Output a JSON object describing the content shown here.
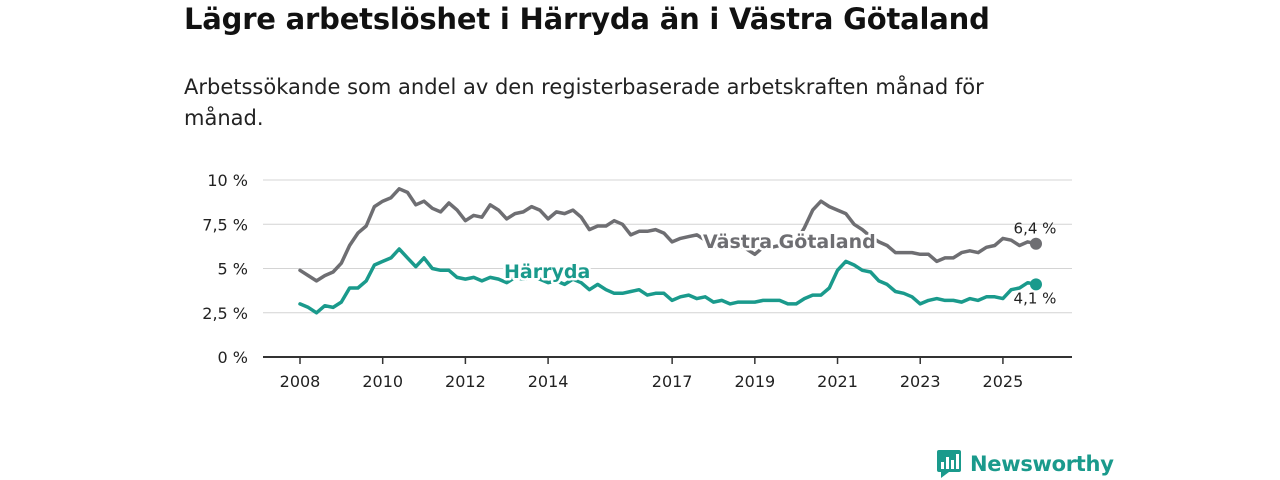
{
  "title": "Lägre arbetslöshet i Härryda än i Västra Götaland",
  "subtitle": "Arbetssökande som andel av den registerbaserade arbetskraften månad för månad.",
  "brand": {
    "name": "Newsworthy",
    "icon": "newsworthy-logo-icon",
    "color": "#1a9a8c"
  },
  "chart_data": {
    "type": "line",
    "title": "Lägre arbetslöshet i Härryda än i Västra Götaland",
    "xlabel": "",
    "ylabel": "",
    "xlim": [
      2008,
      2025.8
    ],
    "ylim": [
      0,
      10
    ],
    "grid": true,
    "x_ticks": [
      2008,
      2010,
      2012,
      2014,
      2017,
      2019,
      2021,
      2023,
      2025
    ],
    "x_tick_labels": [
      "2008",
      "2010",
      "2012",
      "2014",
      "2017",
      "2019",
      "2021",
      "2023",
      "2025"
    ],
    "y_ticks": [
      0,
      2.5,
      5,
      7.5,
      10
    ],
    "y_tick_labels": [
      "0 %",
      "2,5 %",
      "5 %",
      "7,5 %",
      "10 %"
    ],
    "series": [
      {
        "name": "Västra Götaland",
        "color": "#6e6e72",
        "end_label": "6,4 %",
        "points": [
          [
            2008.0,
            4.9
          ],
          [
            2008.2,
            4.6
          ],
          [
            2008.4,
            4.3
          ],
          [
            2008.6,
            4.6
          ],
          [
            2008.8,
            4.8
          ],
          [
            2009.0,
            5.3
          ],
          [
            2009.2,
            6.3
          ],
          [
            2009.4,
            7.0
          ],
          [
            2009.6,
            7.4
          ],
          [
            2009.8,
            8.5
          ],
          [
            2010.0,
            8.8
          ],
          [
            2010.2,
            9.0
          ],
          [
            2010.4,
            9.5
          ],
          [
            2010.6,
            9.3
          ],
          [
            2010.8,
            8.6
          ],
          [
            2011.0,
            8.8
          ],
          [
            2011.2,
            8.4
          ],
          [
            2011.4,
            8.2
          ],
          [
            2011.6,
            8.7
          ],
          [
            2011.8,
            8.3
          ],
          [
            2012.0,
            7.7
          ],
          [
            2012.2,
            8.0
          ],
          [
            2012.4,
            7.9
          ],
          [
            2012.6,
            8.6
          ],
          [
            2012.8,
            8.3
          ],
          [
            2013.0,
            7.8
          ],
          [
            2013.2,
            8.1
          ],
          [
            2013.4,
            8.2
          ],
          [
            2013.6,
            8.5
          ],
          [
            2013.8,
            8.3
          ],
          [
            2014.0,
            7.8
          ],
          [
            2014.2,
            8.2
          ],
          [
            2014.4,
            8.1
          ],
          [
            2014.6,
            8.3
          ],
          [
            2014.8,
            7.9
          ],
          [
            2015.0,
            7.2
          ],
          [
            2015.2,
            7.4
          ],
          [
            2015.4,
            7.4
          ],
          [
            2015.6,
            7.7
          ],
          [
            2015.8,
            7.5
          ],
          [
            2016.0,
            6.9
          ],
          [
            2016.2,
            7.1
          ],
          [
            2016.4,
            7.1
          ],
          [
            2016.6,
            7.2
          ],
          [
            2016.8,
            7.0
          ],
          [
            2017.0,
            6.5
          ],
          [
            2017.2,
            6.7
          ],
          [
            2017.4,
            6.8
          ],
          [
            2017.6,
            6.9
          ],
          [
            2017.8,
            6.6
          ],
          [
            2018.0,
            6.2
          ],
          [
            2018.2,
            6.5
          ],
          [
            2018.4,
            6.4
          ],
          [
            2018.6,
            6.3
          ],
          [
            2018.8,
            6.1
          ],
          [
            2019.0,
            5.8
          ],
          [
            2019.2,
            6.2
          ],
          [
            2019.4,
            6.2
          ],
          [
            2019.6,
            6.3
          ],
          [
            2019.8,
            6.5
          ],
          [
            2020.0,
            6.5
          ],
          [
            2020.2,
            7.3
          ],
          [
            2020.4,
            8.3
          ],
          [
            2020.6,
            8.8
          ],
          [
            2020.8,
            8.5
          ],
          [
            2021.0,
            8.3
          ],
          [
            2021.2,
            8.1
          ],
          [
            2021.4,
            7.5
          ],
          [
            2021.6,
            7.2
          ],
          [
            2021.8,
            6.8
          ],
          [
            2022.0,
            6.5
          ],
          [
            2022.2,
            6.3
          ],
          [
            2022.4,
            5.9
          ],
          [
            2022.6,
            5.9
          ],
          [
            2022.8,
            5.9
          ],
          [
            2023.0,
            5.8
          ],
          [
            2023.2,
            5.8
          ],
          [
            2023.4,
            5.4
          ],
          [
            2023.6,
            5.6
          ],
          [
            2023.8,
            5.6
          ],
          [
            2024.0,
            5.9
          ],
          [
            2024.2,
            6.0
          ],
          [
            2024.4,
            5.9
          ],
          [
            2024.6,
            6.2
          ],
          [
            2024.8,
            6.3
          ],
          [
            2025.0,
            6.7
          ],
          [
            2025.2,
            6.6
          ],
          [
            2025.4,
            6.3
          ],
          [
            2025.6,
            6.5
          ],
          [
            2025.8,
            6.4
          ]
        ]
      },
      {
        "name": "Härryda",
        "color": "#1a9a8c",
        "end_label": "4,1 %",
        "points": [
          [
            2008.0,
            3.0
          ],
          [
            2008.2,
            2.8
          ],
          [
            2008.4,
            2.5
          ],
          [
            2008.6,
            2.9
          ],
          [
            2008.8,
            2.8
          ],
          [
            2009.0,
            3.1
          ],
          [
            2009.2,
            3.9
          ],
          [
            2009.4,
            3.9
          ],
          [
            2009.6,
            4.3
          ],
          [
            2009.8,
            5.2
          ],
          [
            2010.0,
            5.4
          ],
          [
            2010.2,
            5.6
          ],
          [
            2010.4,
            6.1
          ],
          [
            2010.6,
            5.6
          ],
          [
            2010.8,
            5.1
          ],
          [
            2011.0,
            5.6
          ],
          [
            2011.2,
            5.0
          ],
          [
            2011.4,
            4.9
          ],
          [
            2011.6,
            4.9
          ],
          [
            2011.8,
            4.5
          ],
          [
            2012.0,
            4.4
          ],
          [
            2012.2,
            4.5
          ],
          [
            2012.4,
            4.3
          ],
          [
            2012.6,
            4.5
          ],
          [
            2012.8,
            4.4
          ],
          [
            2013.0,
            4.2
          ],
          [
            2013.2,
            4.5
          ],
          [
            2013.4,
            4.4
          ],
          [
            2013.6,
            4.5
          ],
          [
            2013.8,
            4.4
          ],
          [
            2014.0,
            4.2
          ],
          [
            2014.2,
            4.3
          ],
          [
            2014.4,
            4.1
          ],
          [
            2014.6,
            4.4
          ],
          [
            2014.8,
            4.2
          ],
          [
            2015.0,
            3.8
          ],
          [
            2015.2,
            4.1
          ],
          [
            2015.4,
            3.8
          ],
          [
            2015.6,
            3.6
          ],
          [
            2015.8,
            3.6
          ],
          [
            2016.0,
            3.7
          ],
          [
            2016.2,
            3.8
          ],
          [
            2016.4,
            3.5
          ],
          [
            2016.6,
            3.6
          ],
          [
            2016.8,
            3.6
          ],
          [
            2017.0,
            3.2
          ],
          [
            2017.2,
            3.4
          ],
          [
            2017.4,
            3.5
          ],
          [
            2017.6,
            3.3
          ],
          [
            2017.8,
            3.4
          ],
          [
            2018.0,
            3.1
          ],
          [
            2018.2,
            3.2
          ],
          [
            2018.4,
            3.0
          ],
          [
            2018.6,
            3.1
          ],
          [
            2018.8,
            3.1
          ],
          [
            2019.0,
            3.1
          ],
          [
            2019.2,
            3.2
          ],
          [
            2019.4,
            3.2
          ],
          [
            2019.6,
            3.2
          ],
          [
            2019.8,
            3.0
          ],
          [
            2020.0,
            3.0
          ],
          [
            2020.2,
            3.3
          ],
          [
            2020.4,
            3.5
          ],
          [
            2020.6,
            3.5
          ],
          [
            2020.8,
            3.9
          ],
          [
            2021.0,
            4.9
          ],
          [
            2021.2,
            5.4
          ],
          [
            2021.4,
            5.2
          ],
          [
            2021.6,
            4.9
          ],
          [
            2021.8,
            4.8
          ],
          [
            2022.0,
            4.3
          ],
          [
            2022.2,
            4.1
          ],
          [
            2022.4,
            3.7
          ],
          [
            2022.6,
            3.6
          ],
          [
            2022.8,
            3.4
          ],
          [
            2023.0,
            3.0
          ],
          [
            2023.2,
            3.2
          ],
          [
            2023.4,
            3.3
          ],
          [
            2023.6,
            3.2
          ],
          [
            2023.8,
            3.2
          ],
          [
            2024.0,
            3.1
          ],
          [
            2024.2,
            3.3
          ],
          [
            2024.4,
            3.2
          ],
          [
            2024.6,
            3.4
          ],
          [
            2024.8,
            3.4
          ],
          [
            2025.0,
            3.3
          ],
          [
            2025.2,
            3.8
          ],
          [
            2025.4,
            3.9
          ],
          [
            2025.6,
            4.2
          ],
          [
            2025.8,
            4.1
          ]
        ]
      }
    ]
  }
}
